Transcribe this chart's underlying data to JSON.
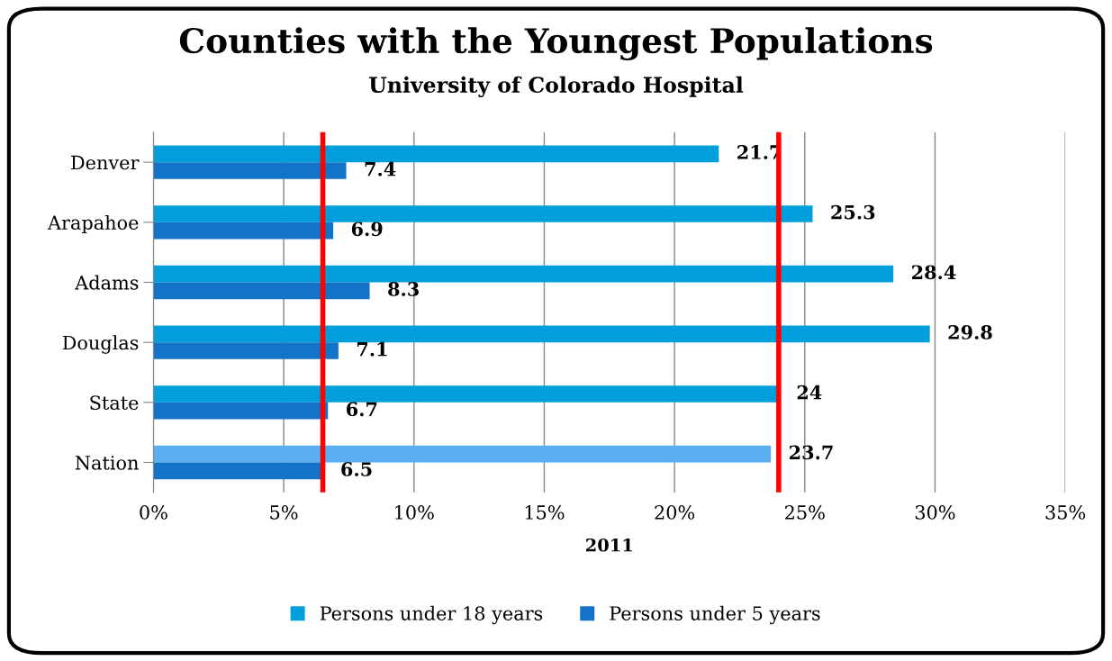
{
  "chart_data": {
    "type": "bar",
    "orientation": "horizontal",
    "title": "Counties with the Youngest Populations",
    "subtitle": "University of Colorado Hospital",
    "xlabel": "2011",
    "categories": [
      "Denver",
      "Arapahoe",
      "Adams",
      "Douglas",
      "State",
      "Nation"
    ],
    "series": [
      {
        "name": "Persons under 18 years",
        "color": "#009fdb",
        "colors": [
          "#009fdb",
          "#009fdb",
          "#009fdb",
          "#009fdb",
          "#009fdb",
          "#5aaff0"
        ],
        "values": [
          21.7,
          25.3,
          28.4,
          29.8,
          24,
          23.7
        ]
      },
      {
        "name": "Persons under 5 years",
        "color": "#1273c9",
        "values": [
          7.4,
          6.9,
          8.3,
          7.1,
          6.7,
          6.5
        ]
      }
    ],
    "xlim": [
      0,
      35
    ],
    "xticks": [
      {
        "value": 0,
        "label": "0%"
      },
      {
        "value": 5,
        "label": "5%"
      },
      {
        "value": 10,
        "label": "10%"
      },
      {
        "value": 15,
        "label": "15%"
      },
      {
        "value": 20,
        "label": "20%"
      },
      {
        "value": 25,
        "label": "25%"
      },
      {
        "value": 30,
        "label": "30%"
      },
      {
        "value": 35,
        "label": "35%"
      }
    ],
    "ref_lines": [
      {
        "axis": "x",
        "value": 6.5,
        "color": "#ff0000"
      },
      {
        "axis": "x",
        "value": 24,
        "color": "#ff0000"
      }
    ],
    "data_labels": true,
    "grid": "x",
    "legend": "bottom"
  }
}
